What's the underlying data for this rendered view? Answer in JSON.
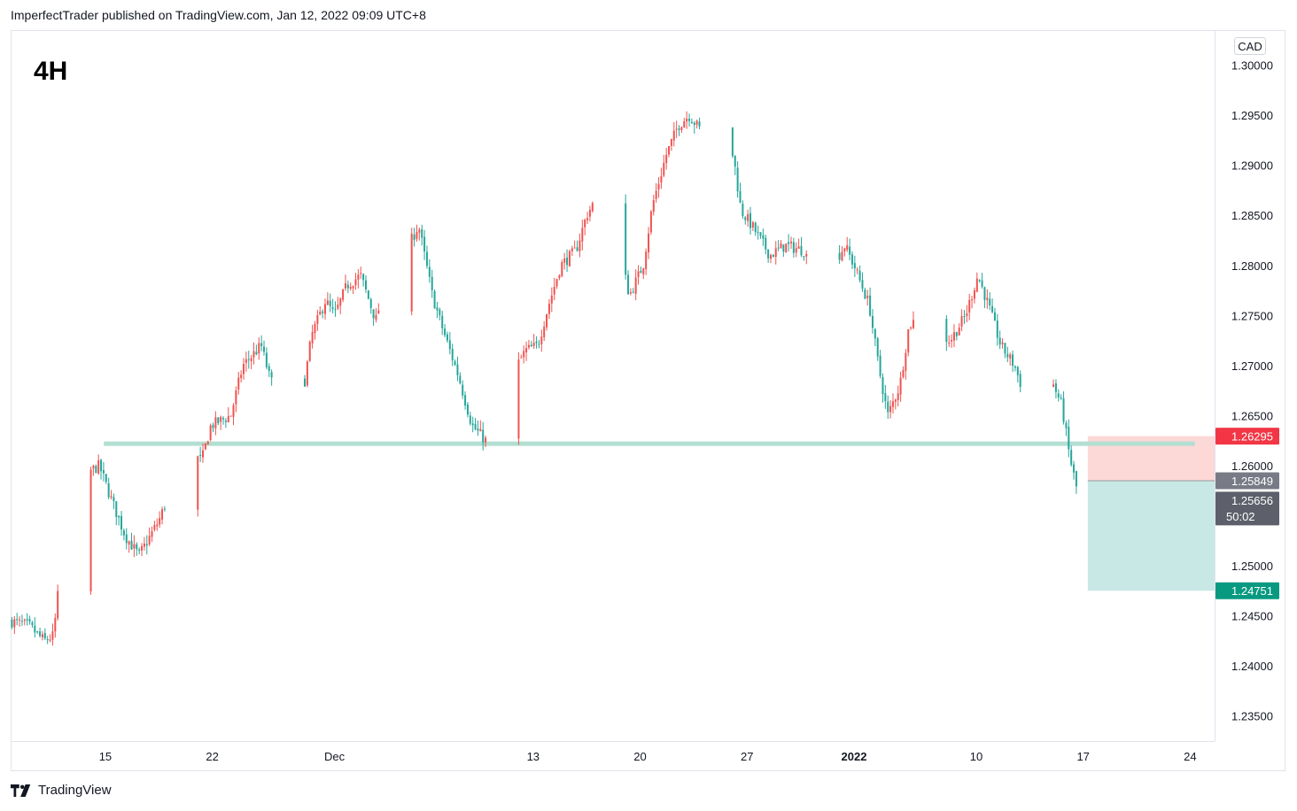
{
  "header": {
    "attribution": "ImperfectTrader published on TradingView.com, Jan 12, 2022 09:09 UTC+8"
  },
  "timeframe_label": "4H",
  "currency": "CAD",
  "footer": {
    "brand": "TradingView"
  },
  "colors": {
    "up": "#ef5350",
    "down": "#26a69a",
    "support_line": "#b2dfd1",
    "stop_zone": "#fcd8d7",
    "target_zone": "#c8e8e5",
    "stop_label": "#f23645",
    "entry_label": "#787b86",
    "last_label": "#5d606b",
    "target_label": "#089981"
  },
  "chart_data": {
    "type": "candlestick",
    "instrument_quote_currency": "CAD",
    "y_ticks": [
      1.3,
      1.295,
      1.29,
      1.285,
      1.28,
      1.275,
      1.27,
      1.265,
      1.26,
      1.255,
      1.25,
      1.245,
      1.24,
      1.235
    ],
    "y_tick_labels": [
      "1.30000",
      "1.29500",
      "1.29000",
      "1.28500",
      "1.28000",
      "1.27500",
      "1.27000",
      "1.26500",
      "1.26000",
      "1.25500",
      "1.25000",
      "1.24500",
      "1.24000",
      "1.23500"
    ],
    "ylim": [
      1.2325,
      1.3035
    ],
    "x_ticks": [
      {
        "label": "15",
        "day": 15,
        "bold": false
      },
      {
        "label": "22",
        "day": 22,
        "bold": false
      },
      {
        "label": "Dec",
        "day": 30,
        "bold": false
      },
      {
        "label": "13",
        "day": 43,
        "bold": false
      },
      {
        "label": "20",
        "day": 50,
        "bold": false
      },
      {
        "label": "27",
        "day": 57,
        "bold": false
      },
      {
        "label": "2022",
        "day": 64,
        "bold": true
      },
      {
        "label": "10",
        "day": 72,
        "bold": false
      },
      {
        "label": "17",
        "day": 79,
        "bold": false
      },
      {
        "label": "24",
        "day": 86,
        "bold": false
      }
    ],
    "xlim": [
      8.8,
      87.6
    ],
    "support_level": 1.2622,
    "position": {
      "direction": "short",
      "stop": 1.26295,
      "stop_label": "1.26295",
      "entry": 1.25849,
      "entry_label": "1.25849",
      "target": 1.24751,
      "target_label": "1.24751"
    },
    "last_price": 1.25656,
    "last_price_label": "1.25656",
    "countdown": "50:02",
    "price_path": [
      [
        8.8,
        1.2445
      ],
      [
        10.0,
        1.244
      ],
      [
        11.0,
        1.2425
      ],
      [
        11.6,
        1.243
      ],
      [
        12.1,
        1.25
      ],
      [
        12.9,
        1.256
      ],
      [
        13.5,
        1.259
      ],
      [
        14.6,
        1.26
      ],
      [
        15.3,
        1.257
      ],
      [
        16.3,
        1.253
      ],
      [
        17.2,
        1.251
      ],
      [
        18.5,
        1.2545
      ],
      [
        19.4,
        1.258
      ],
      [
        20.3,
        1.2615
      ],
      [
        21.3,
        1.2605
      ],
      [
        21.9,
        1.264
      ],
      [
        23.2,
        1.265
      ],
      [
        24.0,
        1.27
      ],
      [
        25.2,
        1.272
      ],
      [
        25.8,
        1.2685
      ],
      [
        27.0,
        1.2665
      ],
      [
        27.8,
        1.266
      ],
      [
        28.5,
        1.273
      ],
      [
        29.4,
        1.2765
      ],
      [
        30.0,
        1.275
      ],
      [
        30.8,
        1.278
      ],
      [
        31.7,
        1.279
      ],
      [
        32.7,
        1.2745
      ],
      [
        33.6,
        1.28
      ],
      [
        34.7,
        1.2815
      ],
      [
        35.5,
        1.284
      ],
      [
        36.4,
        1.277
      ],
      [
        37.0,
        1.274
      ],
      [
        38.1,
        1.269
      ],
      [
        39.0,
        1.264
      ],
      [
        39.9,
        1.2625
      ],
      [
        40.4,
        1.265
      ],
      [
        41.4,
        1.2685
      ],
      [
        42.5,
        1.2715
      ],
      [
        43.3,
        1.272
      ],
      [
        44.0,
        1.276
      ],
      [
        44.8,
        1.28
      ],
      [
        45.8,
        1.2815
      ],
      [
        46.5,
        1.285
      ],
      [
        47.6,
        1.288
      ],
      [
        48.2,
        1.286
      ],
      [
        48.7,
        1.281
      ],
      [
        49.3,
        1.277
      ],
      [
        50.2,
        1.28
      ],
      [
        50.8,
        1.286
      ],
      [
        51.7,
        1.291
      ],
      [
        52.5,
        1.294
      ],
      [
        53.2,
        1.295
      ],
      [
        54.2,
        1.293
      ],
      [
        55.2,
        1.292
      ],
      [
        56.1,
        1.291
      ],
      [
        56.6,
        1.2855
      ],
      [
        57.3,
        1.284
      ],
      [
        58.5,
        1.281
      ],
      [
        59.5,
        1.282
      ],
      [
        60.7,
        1.2815
      ],
      [
        61.5,
        1.279
      ],
      [
        62.6,
        1.28
      ],
      [
        63.4,
        1.282
      ],
      [
        64.0,
        1.28
      ],
      [
        65.0,
        1.276
      ],
      [
        65.6,
        1.27
      ],
      [
        66.2,
        1.265
      ],
      [
        67.0,
        1.268
      ],
      [
        67.6,
        1.274
      ],
      [
        68.7,
        1.2755
      ],
      [
        69.6,
        1.273
      ],
      [
        70.3,
        1.2725
      ],
      [
        71.3,
        1.275
      ],
      [
        72.1,
        1.279
      ],
      [
        72.8,
        1.276
      ],
      [
        73.6,
        1.272
      ],
      [
        74.5,
        1.27
      ],
      [
        75.4,
        1.266
      ],
      [
        76.0,
        1.264
      ],
      [
        76.8,
        1.269
      ],
      [
        77.6,
        1.266
      ],
      [
        78.1,
        1.261
      ],
      [
        78.6,
        1.2575
      ]
    ]
  }
}
